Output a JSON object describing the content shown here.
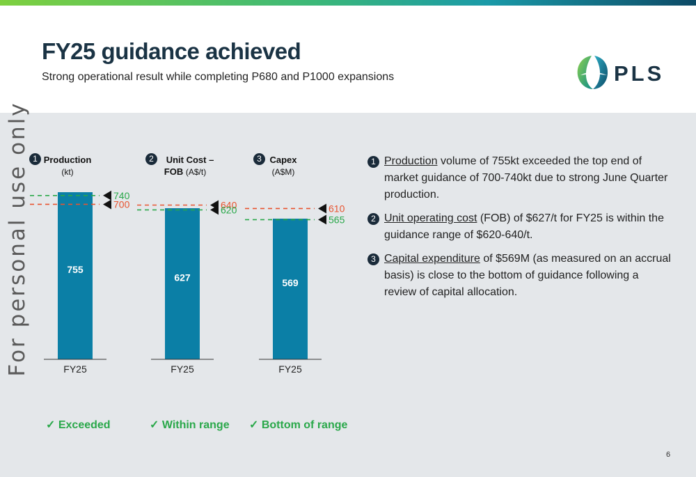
{
  "header": {
    "title": "FY25 guidance achieved",
    "subtitle": "Strong operational result while completing P680 and P1000 expansions",
    "logo_text": "PLS"
  },
  "watermark": "For personal use only",
  "colors": {
    "bar": "#0b7fa6",
    "upper_guidance": "#e8532f",
    "lower_guidance": "#2aa84a",
    "lower_guidance_alt": "#2aa84a",
    "verdict": "#2aa84a"
  },
  "chart_data": [
    {
      "type": "bar",
      "number": "1",
      "title": "Production",
      "unit": "(kt)",
      "categories": [
        "FY25"
      ],
      "values": [
        755
      ],
      "value_label": "755",
      "guidance": [
        {
          "label": "740",
          "value": 740,
          "color": "#2aa84a"
        },
        {
          "label": "700",
          "value": 700,
          "color": "#e8532f"
        }
      ],
      "ylim": [
        0,
        800
      ],
      "verdict": "✓ Exceeded"
    },
    {
      "type": "bar",
      "number": "2",
      "title": "Unit Cost –",
      "title_line2": "FOB",
      "unit": "(A$/t)",
      "categories": [
        "FY25"
      ],
      "values": [
        627
      ],
      "value_label": "627",
      "guidance": [
        {
          "label": "640",
          "value": 640,
          "color": "#e8532f"
        },
        {
          "label": "620",
          "value": 620,
          "color": "#2aa84a"
        }
      ],
      "ylim": [
        0,
        700
      ],
      "verdict": "✓ Within range"
    },
    {
      "type": "bar",
      "number": "3",
      "title": "Capex",
      "unit": "(A$M)",
      "categories": [
        "FY25"
      ],
      "values": [
        569
      ],
      "value_label": "569",
      "guidance": [
        {
          "label": "610",
          "value": 610,
          "color": "#e8532f"
        },
        {
          "label": "565",
          "value": 565,
          "color": "#2aa84a"
        }
      ],
      "ylim": [
        0,
        680
      ],
      "verdict": "✓ Bottom of range"
    }
  ],
  "notes": [
    {
      "number": "1",
      "link": "Production",
      "text": " volume of 755kt exceeded the top end of market guidance of 700-740kt due to strong June Quarter production."
    },
    {
      "number": "2",
      "link": "Unit operating cost",
      "text": " (FOB) of $627/t for FY25 is within the guidance range of $620-640/t."
    },
    {
      "number": "3",
      "link": "Capital expenditure",
      "text": " of $569M (as measured on an accrual basis) is close to the bottom of guidance following a review of capital allocation."
    }
  ],
  "page_number": "6"
}
